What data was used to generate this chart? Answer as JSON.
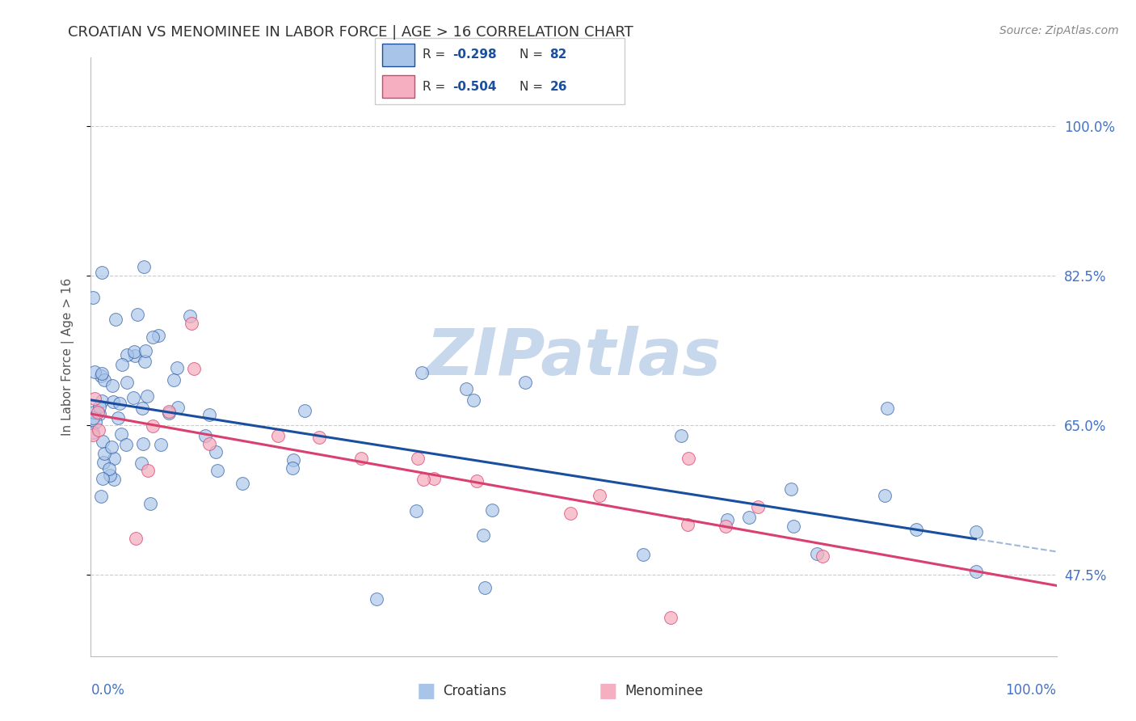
{
  "title": "CROATIAN VS MENOMINEE IN LABOR FORCE | AGE > 16 CORRELATION CHART",
  "source": "Source: ZipAtlas.com",
  "ylabel": "In Labor Force | Age > 16",
  "y_ticks": [
    47.5,
    65.0,
    82.5,
    100.0
  ],
  "xlim": [
    0.0,
    100.0
  ],
  "ylim": [
    38.0,
    108.0
  ],
  "R_croatian": -0.298,
  "N_croatian": 82,
  "R_menominee": -0.504,
  "N_menominee": 26,
  "legend_label_croatian": "Croatians",
  "legend_label_menominee": "Menominee",
  "croatian_color": "#a8c4e8",
  "menominee_color": "#f5afc0",
  "trendline_croatian_color": "#1a4fa0",
  "trendline_menominee_color": "#d94070",
  "trendline_croatian_dashed_color": "#a0b8d8",
  "background_color": "#ffffff",
  "grid_color": "#cccccc",
  "right_tick_color": "#4472c4",
  "bottom_tick_color": "#4472c4",
  "title_fontsize": 13,
  "source_fontsize": 10,
  "tick_fontsize": 12,
  "ylabel_fontsize": 11
}
